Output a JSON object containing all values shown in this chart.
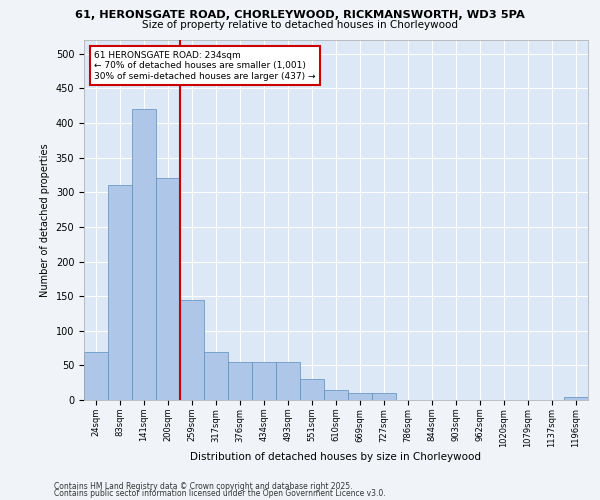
{
  "title_line1": "61, HERONSGATE ROAD, CHORLEYWOOD, RICKMANSWORTH, WD3 5PA",
  "title_line2": "Size of property relative to detached houses in Chorleywood",
  "xlabel": "Distribution of detached houses by size in Chorleywood",
  "ylabel": "Number of detached properties",
  "categories": [
    "24sqm",
    "83sqm",
    "141sqm",
    "200sqm",
    "259sqm",
    "317sqm",
    "376sqm",
    "434sqm",
    "493sqm",
    "551sqm",
    "610sqm",
    "669sqm",
    "727sqm",
    "786sqm",
    "844sqm",
    "903sqm",
    "962sqm",
    "1020sqm",
    "1079sqm",
    "1137sqm",
    "1196sqm"
  ],
  "values": [
    70,
    310,
    420,
    320,
    145,
    70,
    55,
    55,
    55,
    30,
    15,
    10,
    10,
    0,
    0,
    0,
    0,
    0,
    0,
    0,
    5
  ],
  "bar_color": "#aec6e8",
  "bar_edge_color": "#5a8fc0",
  "vline_color": "#cc0000",
  "vline_x": 3.5,
  "annotation_text": "61 HERONSGATE ROAD: 234sqm\n← 70% of detached houses are smaller (1,001)\n30% of semi-detached houses are larger (437) →",
  "annotation_box_color": "#ffffff",
  "annotation_box_edge": "#cc0000",
  "ylim": [
    0,
    520
  ],
  "yticks": [
    0,
    50,
    100,
    150,
    200,
    250,
    300,
    350,
    400,
    450,
    500
  ],
  "background_color": "#dce8f5",
  "grid_color": "#ffffff",
  "fig_background": "#f0f4f8",
  "footer_line1": "Contains HM Land Registry data © Crown copyright and database right 2025.",
  "footer_line2": "Contains public sector information licensed under the Open Government Licence v3.0."
}
